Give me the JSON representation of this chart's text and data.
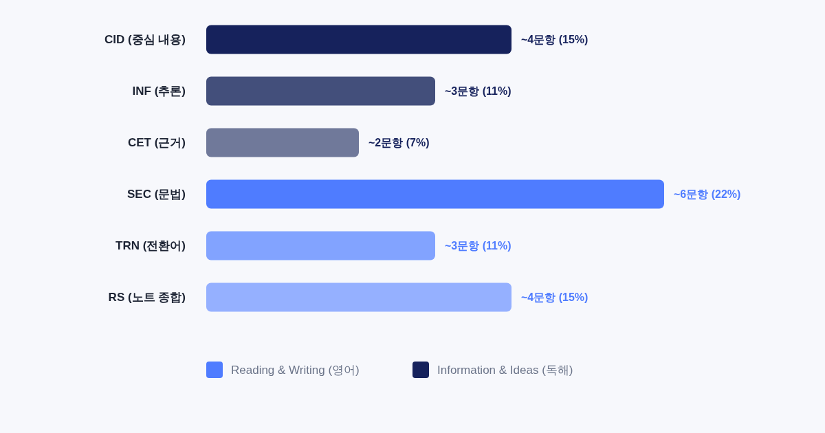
{
  "chart_data": {
    "type": "bar",
    "orientation": "horizontal",
    "categories": [
      "CID (중심 내용)",
      "INF (추론)",
      "CET (근거)",
      "SEC (문법)",
      "TRN (전환어)",
      "RS (노트 종합)"
    ],
    "series": [
      {
        "name": "Reading & Writing (영어)",
        "color": "#4f7cff",
        "values": [
          null,
          null,
          null,
          6,
          3,
          4
        ],
        "colors": [
          null,
          null,
          null,
          "#4f7cff",
          "#82a3ff",
          "#95b0ff"
        ],
        "value_labels": [
          null,
          null,
          null,
          "~6문항 (22%)",
          "~3문항 (11%)",
          "~4문항 (15%)"
        ]
      },
      {
        "name": "Information & Ideas (독해)",
        "color": "#16225c",
        "values": [
          4,
          3,
          2,
          null,
          null,
          null
        ],
        "colors": [
          "#16225c",
          "#434f7b",
          "#70799a",
          null,
          null,
          null
        ],
        "value_labels": [
          "~4문항 (15%)",
          "~3문항 (11%)",
          "~2문항 (7%)",
          null,
          null,
          null
        ]
      }
    ],
    "legend": "bottom"
  }
}
